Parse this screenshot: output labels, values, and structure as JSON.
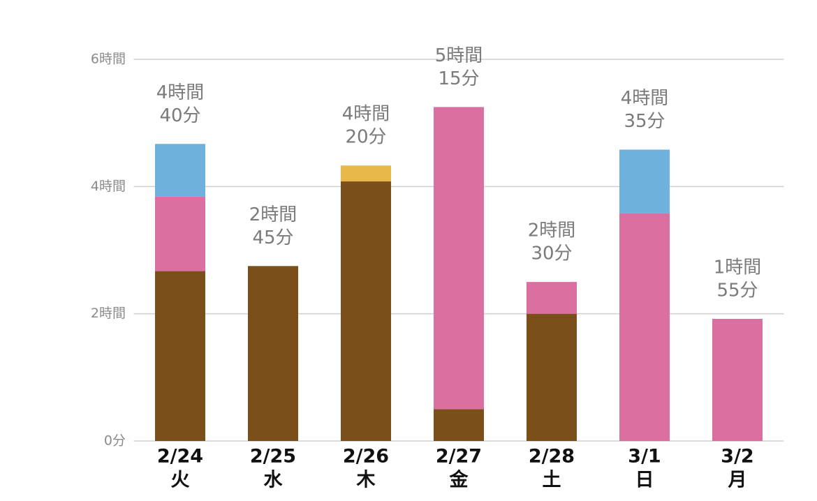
{
  "chart_data": {
    "type": "stacked_bar",
    "categories": [
      "2/24",
      "2/25",
      "2/26",
      "2/27",
      "2/28",
      "3/1",
      "3/2"
    ],
    "weekdays": [
      "火",
      "水",
      "木",
      "金",
      "土",
      "日",
      "月"
    ],
    "series": [
      {
        "color": "#7b4f1a",
        "values": [
          2.67,
          2.75,
          4.08,
          0.5,
          2,
          0,
          0
        ]
      },
      {
        "color": "#db70a0",
        "values": [
          1.17,
          0,
          0,
          4.75,
          0.5,
          3.58,
          1.92
        ]
      },
      {
        "color": "#e8b84a",
        "values": [
          0,
          0,
          0.25,
          0,
          0,
          0,
          0
        ]
      },
      {
        "color": "#6fb1dd",
        "values": [
          0.83,
          0,
          0,
          0,
          0,
          1,
          0
        ]
      }
    ],
    "total_labels": [
      [
        "4時間",
        "40分"
      ],
      [
        "2時間",
        "45分"
      ],
      [
        "4時間",
        "20分"
      ],
      [
        "5時間",
        "15分"
      ],
      [
        "2時間",
        "30分"
      ],
      [
        "4時間",
        "35分"
      ],
      [
        "1時間",
        "55分"
      ]
    ],
    "ylim": [
      0,
      6
    ],
    "yticks": [
      {
        "value": 0,
        "label": "0分"
      },
      {
        "value": 2,
        "label": "2時間"
      },
      {
        "value": 4,
        "label": "4時間"
      },
      {
        "value": 6,
        "label": "6時間"
      }
    ],
    "grid": true
  }
}
